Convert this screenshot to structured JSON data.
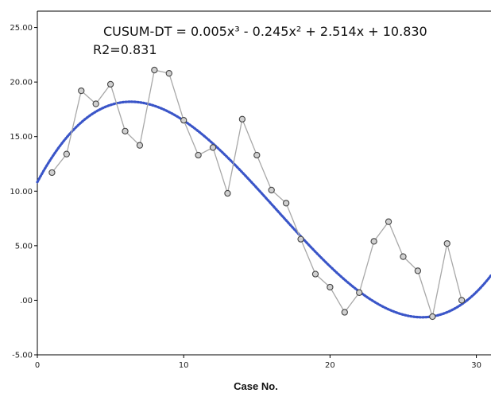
{
  "chart_data": {
    "type": "scatter",
    "xlabel": "Case No.",
    "ylabel": "",
    "xlim": [
      0,
      31
    ],
    "ylim": [
      -5,
      26.5
    ],
    "x_ticks": [
      0,
      10,
      20,
      30
    ],
    "y_ticks": [
      -5,
      0,
      5,
      10,
      15,
      20,
      25
    ],
    "x_tick_labels": [
      "0",
      "10",
      "20",
      "30"
    ],
    "y_tick_labels": [
      "-5.00",
      ".00",
      "5.00",
      "10.00",
      "15.00",
      "20.00",
      "25.00"
    ],
    "grid": false,
    "annotations": {
      "equation": "CUSUM-DT = 0.005x³ - 0.245x² + 2.514x + 10.830",
      "r2": "R2=0.831"
    },
    "series": [
      {
        "type": "line+markers",
        "color": "#a8a8a8",
        "marker_color": "#444444",
        "x": [
          1,
          2,
          3,
          4,
          5,
          6,
          7,
          8,
          9,
          10,
          11,
          12,
          13,
          14,
          15,
          16,
          17,
          18,
          19,
          20,
          21,
          22,
          23,
          24,
          25,
          26,
          27,
          28,
          29
        ],
        "y": [
          11.7,
          13.4,
          19.2,
          18.0,
          19.8,
          15.5,
          14.2,
          21.1,
          20.8,
          16.5,
          13.3,
          14.0,
          9.8,
          16.6,
          13.3,
          10.1,
          8.9,
          5.6,
          2.4,
          1.2,
          -1.1,
          0.7,
          5.4,
          7.2,
          4.0,
          2.7,
          -1.5,
          5.2,
          0.0
        ]
      },
      {
        "type": "fit",
        "color": "#3a55c8",
        "coefficients": [
          0.005,
          -0.245,
          2.514,
          10.83
        ]
      }
    ]
  }
}
